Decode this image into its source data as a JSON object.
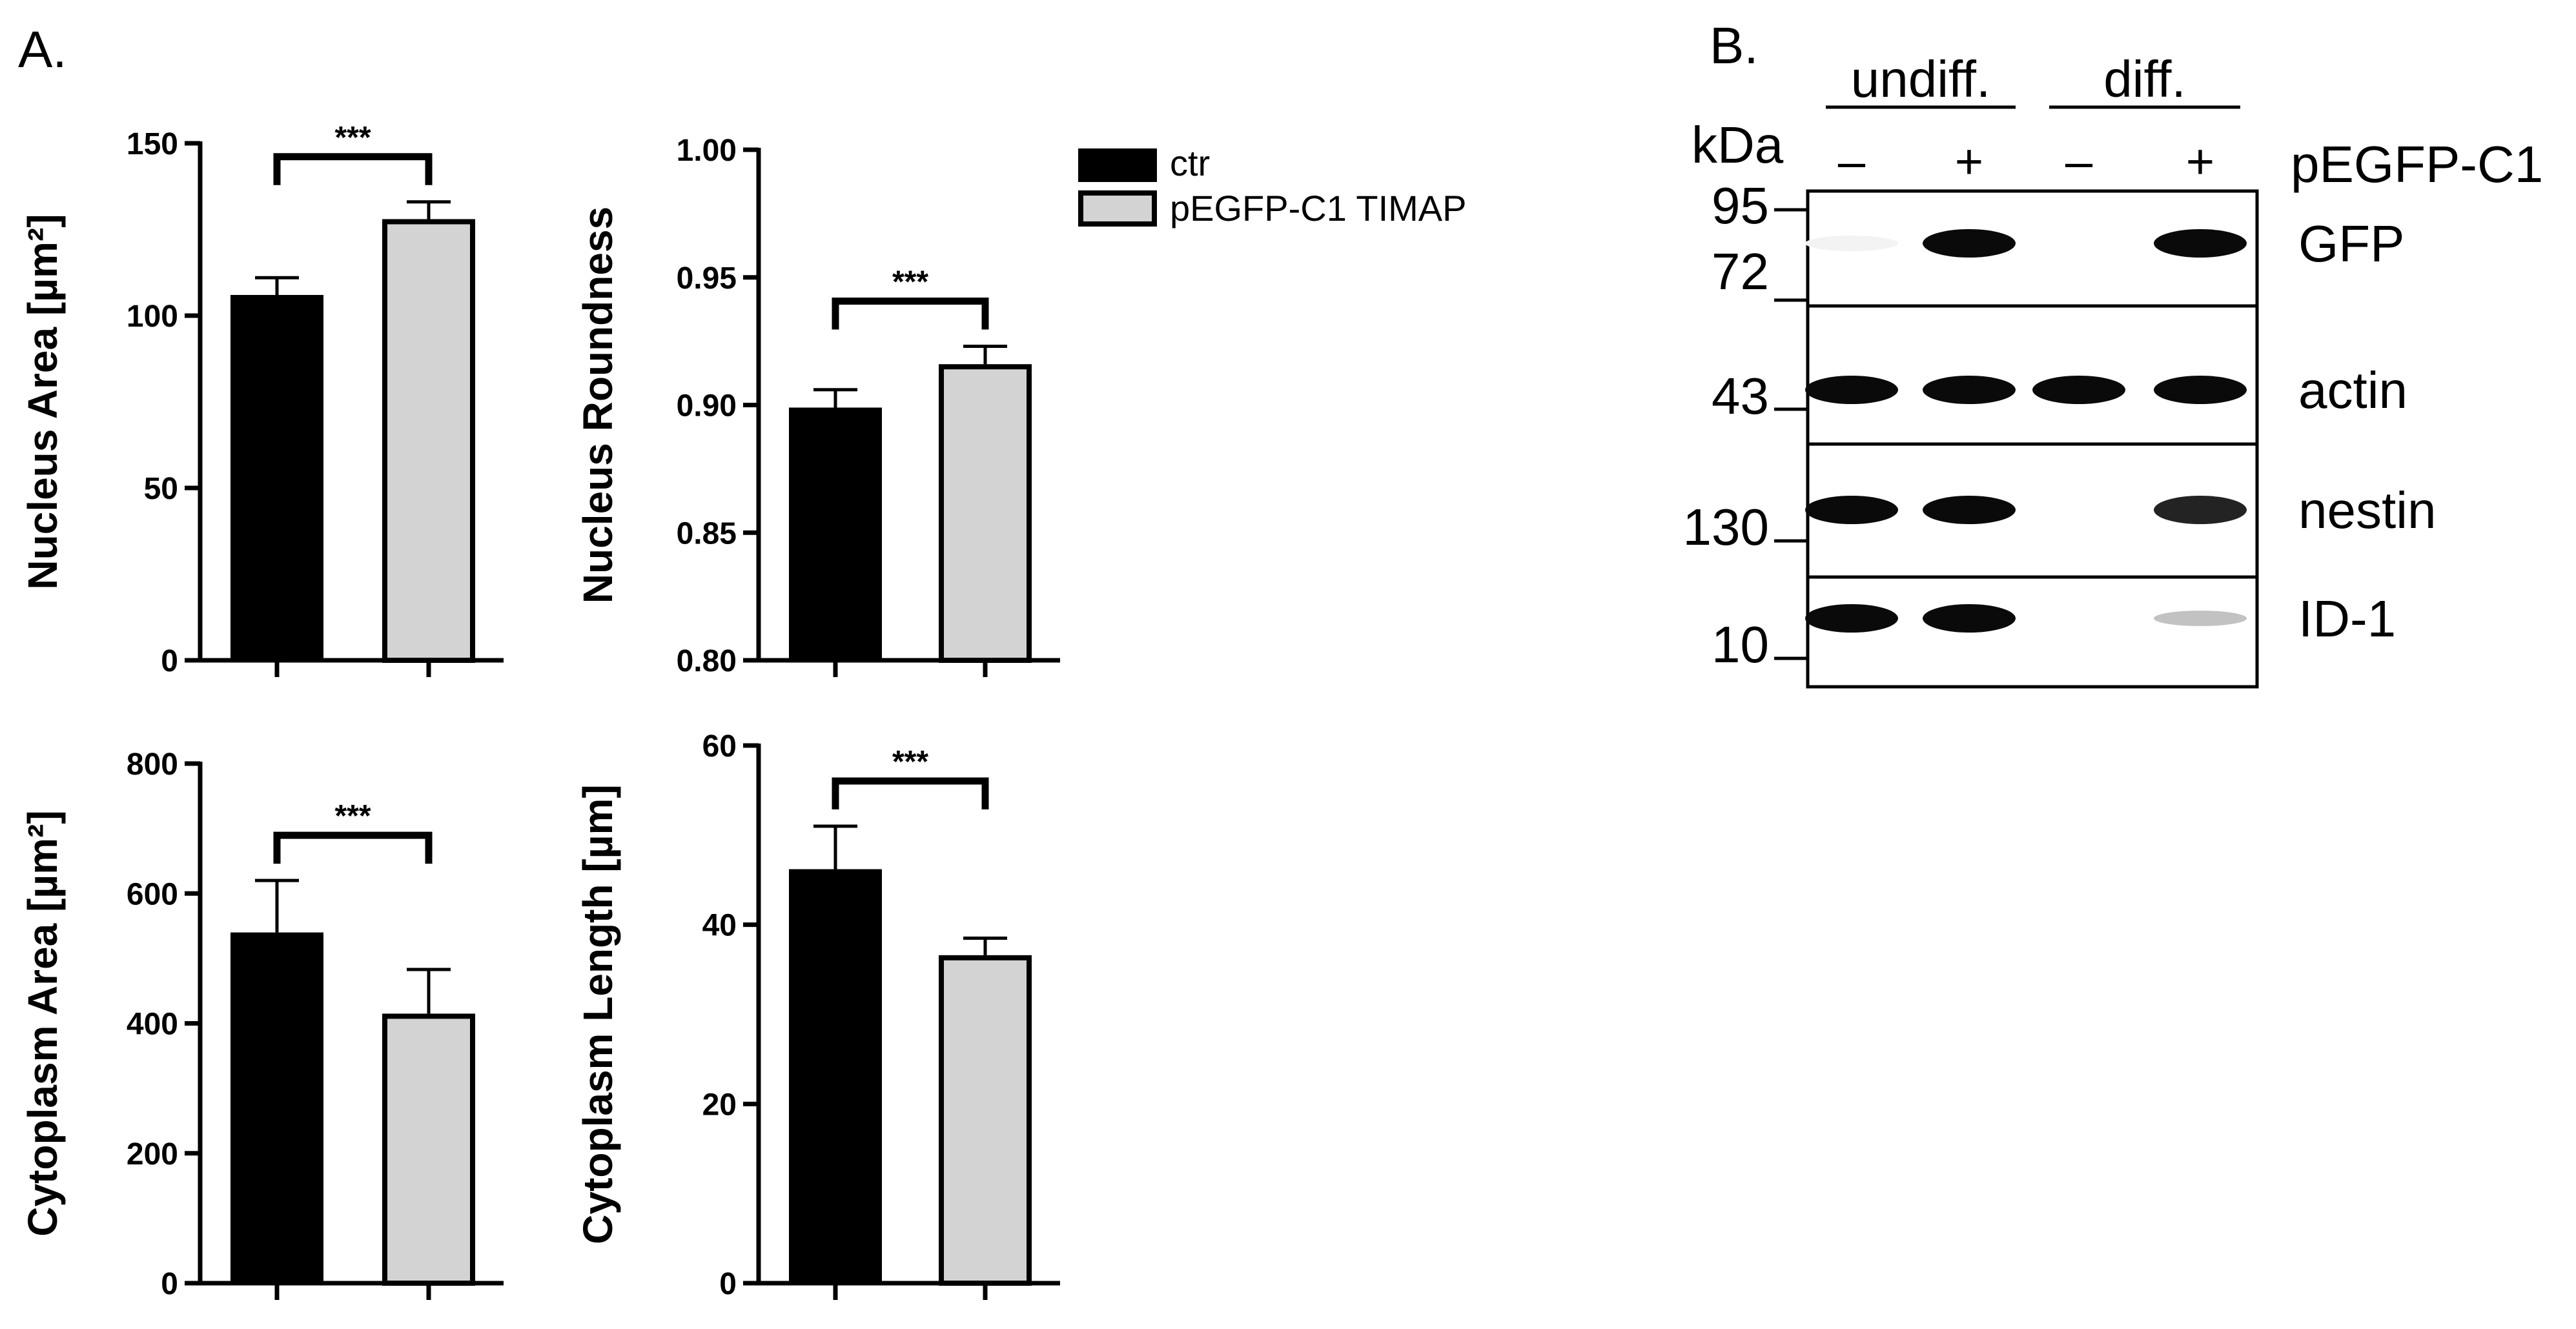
{
  "panel_a_label": "A.",
  "panel_b_label": "B.",
  "legend": [
    {
      "label": "ctr",
      "color": "#000000"
    },
    {
      "label": "pEGFP-C1 TIMAP",
      "color": "#d3d3d3"
    }
  ],
  "chart_data": [
    {
      "type": "bar",
      "ylabel": "Nucleus Area [µm²]",
      "ylim": [
        0,
        150
      ],
      "yticks": [
        "0",
        "50",
        "100",
        "150"
      ],
      "yticks_values": [
        0,
        50,
        100,
        150
      ],
      "series": [
        {
          "name": "ctr",
          "value": 106,
          "error": 5,
          "color": "#000000"
        },
        {
          "name": "pEGFP-C1 TIMAP",
          "value": 128,
          "error": 5,
          "color": "#d3d3d3"
        }
      ],
      "significance": "***"
    },
    {
      "type": "bar",
      "ylabel": "Nucleus Roundness",
      "ylim": [
        0.8,
        1.0
      ],
      "yticks": [
        "0.80",
        "0.85",
        "0.90",
        "0.95",
        "1.00"
      ],
      "yticks_values": [
        0.8,
        0.85,
        0.9,
        0.95,
        1.0
      ],
      "series": [
        {
          "name": "ctr",
          "value": 0.899,
          "error": 0.007,
          "color": "#000000"
        },
        {
          "name": "pEGFP-C1 TIMAP",
          "value": 0.916,
          "error": 0.007,
          "color": "#d3d3d3"
        }
      ],
      "significance": "***"
    },
    {
      "type": "bar",
      "ylabel": "Cytoplasm Area [µm²]",
      "ylim": [
        0,
        800
      ],
      "yticks": [
        "0",
        "200",
        "400",
        "600",
        "800"
      ],
      "yticks_values": [
        0,
        200,
        400,
        600,
        800
      ],
      "series": [
        {
          "name": "ctr",
          "value": 540,
          "error": 80,
          "color": "#000000"
        },
        {
          "name": "pEGFP-C1 TIMAP",
          "value": 415,
          "error": 68,
          "color": "#d3d3d3"
        }
      ],
      "significance": "***"
    },
    {
      "type": "bar",
      "ylabel": "Cytoplasm Length [µm]",
      "ylim": [
        0,
        60
      ],
      "yticks": [
        "0",
        "20",
        "40",
        "60"
      ],
      "yticks_values": [
        0,
        20,
        40,
        60
      ],
      "series": [
        {
          "name": "ctr",
          "value": 46.2,
          "error": 4.8,
          "color": "#000000"
        },
        {
          "name": "pEGFP-C1 TIMAP",
          "value": 36.6,
          "error": 1.9,
          "color": "#d3d3d3"
        }
      ],
      "significance": "***"
    }
  ],
  "blot": {
    "group_undiff": "undiff.",
    "group_diff": "diff.",
    "kda_label": "kDa",
    "treatment_label": "pEGFP-C1",
    "lane_signs": [
      "–",
      "+",
      "–",
      "+"
    ],
    "rows": [
      {
        "label": "GFP",
        "markers": [
          "95",
          "72"
        ],
        "intensities": [
          0.05,
          1,
          0,
          1
        ]
      },
      {
        "label": "actin",
        "markers": [
          "43"
        ],
        "intensities": [
          1,
          1,
          1,
          1
        ]
      },
      {
        "label": "nestin",
        "markers": [
          "130"
        ],
        "intensities": [
          1,
          1,
          0,
          0.9
        ]
      },
      {
        "label": "ID-1",
        "markers": [
          "10"
        ],
        "intensities": [
          1,
          1,
          0,
          0.25
        ]
      }
    ]
  }
}
